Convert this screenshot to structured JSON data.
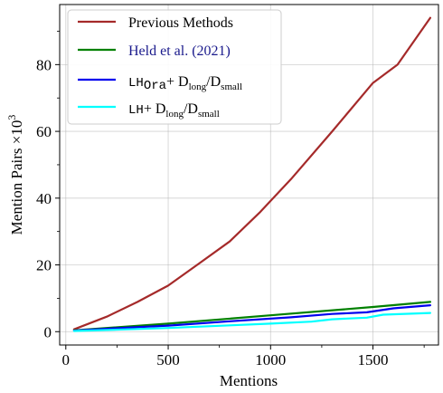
{
  "chart_data": {
    "type": "line",
    "xlabel": "Mentions",
    "ylabel_main": "Mention Pairs ×10",
    "ylabel_exp": "3",
    "xlim": [
      -30,
      1820
    ],
    "ylim": [
      -4,
      98
    ],
    "xticks": [
      0,
      500,
      1000,
      1500
    ],
    "yticks": [
      0,
      20,
      40,
      60,
      80
    ],
    "x_minor_ticks": [
      250,
      750,
      1250,
      1750
    ],
    "y_minor_ticks": [
      10,
      30,
      50,
      70,
      90
    ],
    "grid": true,
    "legend_position": "top-left",
    "series": [
      {
        "name": "Previous Methods",
        "color": "#a52a2a",
        "x": [
          40,
          200,
          350,
          500,
          650,
          800,
          950,
          1100,
          1300,
          1500,
          1620,
          1780
        ],
        "y": [
          0.7,
          4.5,
          8.9,
          13.8,
          20.4,
          27.0,
          35.9,
          45.7,
          59.9,
          74.5,
          80.0,
          94.0
        ]
      },
      {
        "name": "Held et al. (2021)",
        "color": "#008000",
        "x": [
          40,
          500,
          1000,
          1500,
          1780
        ],
        "y": [
          0.4,
          2.4,
          4.9,
          7.4,
          8.9
        ]
      },
      {
        "name_mono": "LH",
        "name_sub": "Ora",
        "name_tail": "+ D",
        "name_tail_sub1": "long",
        "name_tail_mid": "/D",
        "name_tail_sub2": "small",
        "color": "#0000ee",
        "x": [
          40,
          300,
          500,
          800,
          1100,
          1300,
          1470,
          1600,
          1780
        ],
        "y": [
          0.3,
          1.2,
          1.8,
          3.1,
          4.3,
          5.3,
          5.8,
          7.0,
          7.9
        ]
      },
      {
        "name_mono": "LH",
        "name_tail": "+ D",
        "name_tail_sub1": "long",
        "name_tail_mid": "/D",
        "name_tail_sub2": "small",
        "color": "#00ffff",
        "x": [
          40,
          300,
          500,
          800,
          1000,
          1200,
          1300,
          1470,
          1550,
          1780
        ],
        "y": [
          0.2,
          0.7,
          1.1,
          1.9,
          2.4,
          3.0,
          3.7,
          4.2,
          5.1,
          5.6
        ]
      }
    ]
  }
}
